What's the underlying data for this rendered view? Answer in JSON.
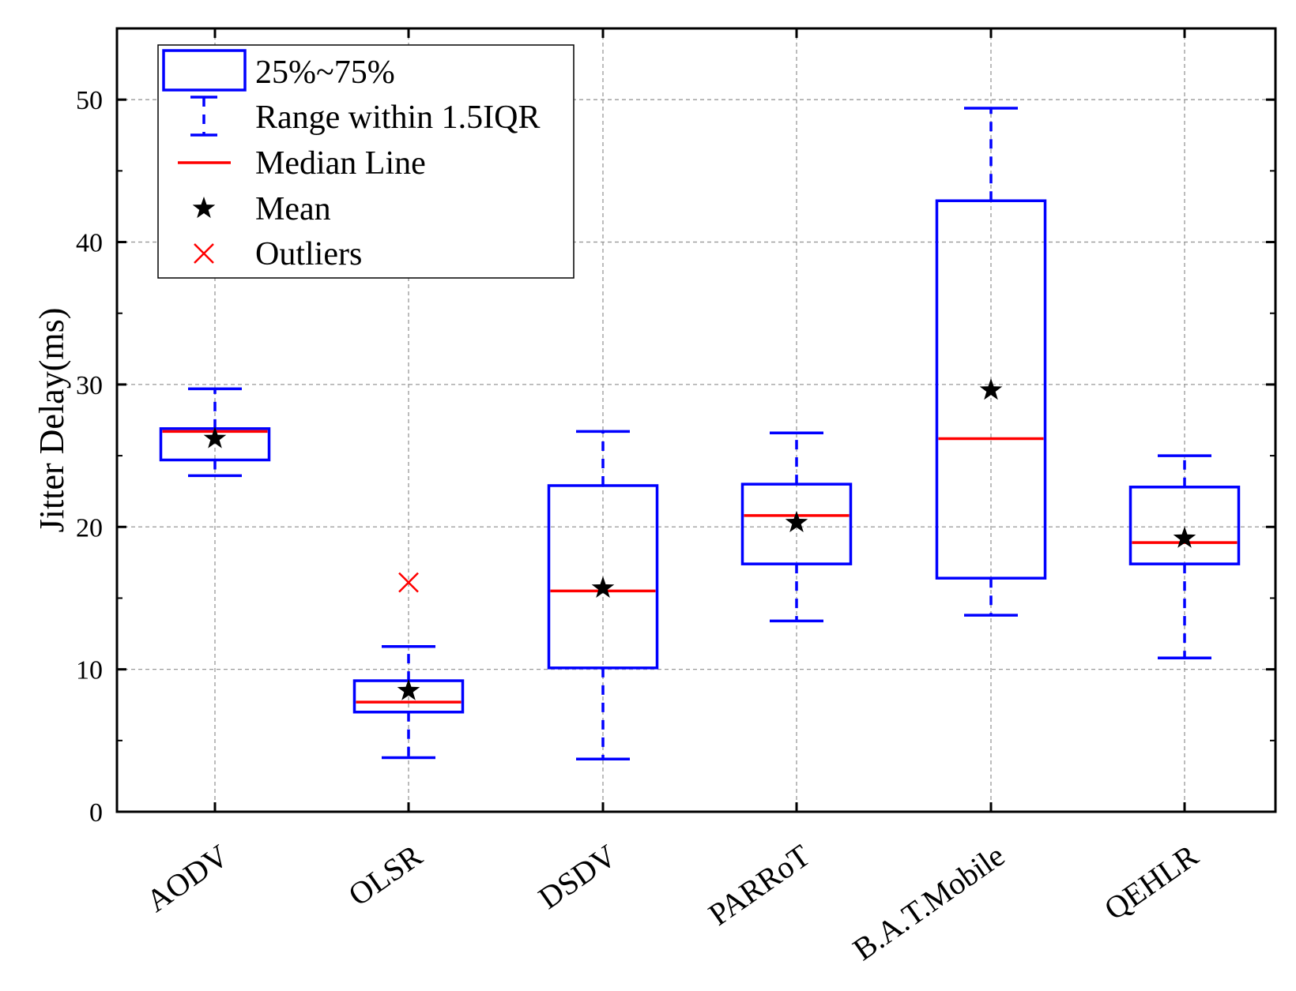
{
  "chart_data": {
    "type": "box",
    "title": "",
    "xlabel": "",
    "ylabel": "Jitter Delay(ms)",
    "ylim": [
      0,
      55
    ],
    "yticks": [
      0,
      10,
      20,
      30,
      40,
      50
    ],
    "grid": true,
    "colors": {
      "box": "#0000ff",
      "median": "#ff0000",
      "mean": "#000000",
      "outlier": "#ff0000",
      "grid": "#999999"
    },
    "categories": [
      "AODV",
      "OLSR",
      "DSDV",
      "PARRoT",
      "B.A.T.Mobile",
      "QEHLR"
    ],
    "boxes": [
      {
        "name": "AODV",
        "whisker_low": 23.6,
        "q1": 24.7,
        "median": 26.7,
        "q3": 26.9,
        "whisker_high": 29.7,
        "mean": 26.2,
        "outliers": []
      },
      {
        "name": "OLSR",
        "whisker_low": 3.8,
        "q1": 7.0,
        "median": 7.7,
        "q3": 9.2,
        "whisker_high": 11.6,
        "mean": 8.5,
        "outliers": [
          16.1
        ]
      },
      {
        "name": "DSDV",
        "whisker_low": 3.7,
        "q1": 10.1,
        "median": 15.5,
        "q3": 22.9,
        "whisker_high": 26.7,
        "mean": 15.7,
        "outliers": []
      },
      {
        "name": "PARRoT",
        "whisker_low": 13.4,
        "q1": 17.4,
        "median": 20.8,
        "q3": 23.0,
        "whisker_high": 26.6,
        "mean": 20.3,
        "outliers": []
      },
      {
        "name": "B.A.T.Mobile",
        "whisker_low": 13.8,
        "q1": 16.4,
        "median": 26.2,
        "q3": 42.9,
        "whisker_high": 49.4,
        "mean": 29.6,
        "outliers": []
      },
      {
        "name": "QEHLR",
        "whisker_low": 10.8,
        "q1": 17.4,
        "median": 18.9,
        "q3": 22.8,
        "whisker_high": 25.0,
        "mean": 19.2,
        "outliers": []
      }
    ],
    "legend": {
      "position": "top-left",
      "entries": [
        {
          "symbol": "box",
          "label": "25%~75%"
        },
        {
          "symbol": "whisker",
          "label": "Range within 1.5IQR"
        },
        {
          "symbol": "median",
          "label": "Median Line"
        },
        {
          "symbol": "mean",
          "label": "Mean"
        },
        {
          "symbol": "outlier",
          "label": "Outliers"
        }
      ]
    }
  }
}
